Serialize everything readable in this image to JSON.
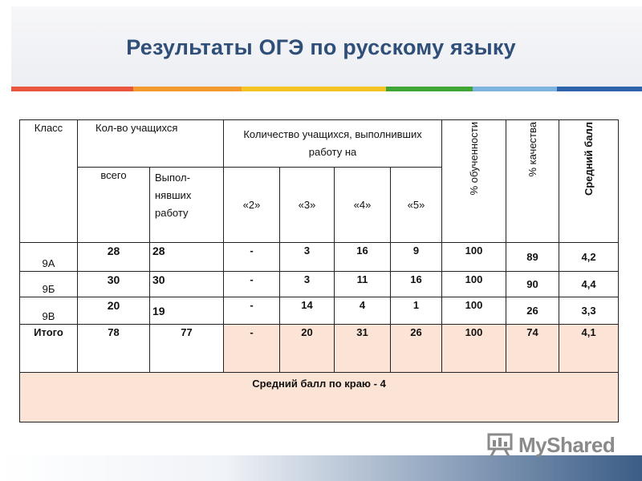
{
  "title": "Результаты ОГЭ по русскому языку",
  "header": {
    "class": "Класс",
    "students_count": "Кол-во учащихся",
    "completed_on": "Количество учащихся, выполнивших работу на",
    "total": "всего",
    "completed": "Выпол-нявших работу",
    "g2": "«2»",
    "g3": "«3»",
    "g4": "«4»",
    "g5": "«5»",
    "pct_learning": "% обученности",
    "pct_quality": "% качества",
    "avg_score": "Средний балл"
  },
  "rows": [
    {
      "class": "9А",
      "total": "28",
      "completed": "28",
      "g2": "-",
      "g3": "3",
      "g4": "16",
      "g5": "9",
      "pct_learning": "100",
      "pct_quality": "89",
      "avg": "4,2"
    },
    {
      "class": "9Б",
      "total": "30",
      "completed": "30",
      "g2": "-",
      "g3": "3",
      "g4": "11",
      "g5": "16",
      "pct_learning": "100",
      "pct_quality": "90",
      "avg": "4,4"
    },
    {
      "class": "9В",
      "total": "20",
      "completed": "19",
      "g2": "-",
      "g3": "14",
      "g4": "4",
      "g5": "1",
      "pct_learning": "100",
      "pct_quality": "26",
      "avg": "3,3"
    }
  ],
  "total_row": {
    "class": "Итого",
    "total": "78",
    "completed": "77",
    "g2": "-",
    "g3": "20",
    "g4": "31",
    "g5": "26",
    "pct_learning": "100",
    "pct_quality": "74",
    "avg": "4,1"
  },
  "footer_note": "Средний балл по краю - 4",
  "logo": {
    "text": "MyShared"
  },
  "colors": {
    "title": "#2f4f79",
    "table_tint": "#fbe4d5",
    "stripe": [
      "#e8563d",
      "#f29a2e",
      "#f5c424",
      "#3fa535",
      "#7fb3df",
      "#2d63a8"
    ]
  }
}
